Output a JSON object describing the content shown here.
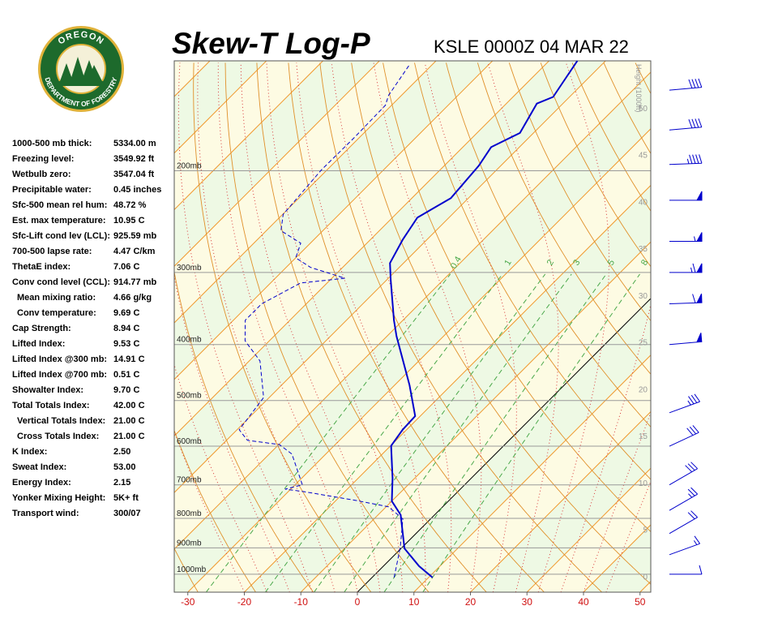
{
  "logo": {
    "top": "OREGON",
    "bottom": "DEPARTMENT OF FORESTRY"
  },
  "indices": [
    {
      "label": "1000-500 mb thick:",
      "value": "5334.00 m"
    },
    {
      "label": "Freezing level:",
      "value": "3549.92 ft"
    },
    {
      "label": "Wetbulb zero:",
      "value": "3547.04 ft"
    },
    {
      "label": "Precipitable water:",
      "value": "0.45 inches"
    },
    {
      "label": "Sfc-500 mean rel hum:",
      "value": "48.72 %"
    },
    {
      "label": "Est. max temperature:",
      "value": "10.95 C"
    },
    {
      "label": "Sfc-Lift cond lev (LCL):",
      "value": "925.59 mb"
    },
    {
      "label": "700-500 lapse rate:",
      "value": "4.47 C/km"
    },
    {
      "label": "ThetaE index:",
      "value": "7.06 C"
    },
    {
      "label": "Conv cond level (CCL):",
      "value": "914.77 mb",
      "sub": [
        {
          "label": "Mean mixing ratio:",
          "value": "4.66 g/kg"
        },
        {
          "label": "Conv temperature:",
          "value": "9.69 C"
        }
      ]
    },
    {
      "label": "Cap Strength:",
      "value": "8.94 C"
    },
    {
      "label": "Lifted Index:",
      "value": "9.53 C"
    },
    {
      "label": "Lifted Index @300 mb:",
      "value": "14.91 C"
    },
    {
      "label": "Lifted Index @700 mb:",
      "value": "0.51 C"
    },
    {
      "label": "Showalter Index:",
      "value": "9.70 C"
    },
    {
      "label": "Total Totals Index:",
      "value": "42.00 C",
      "sub": [
        {
          "label": "Vertical Totals Index:",
          "value": "21.00 C"
        },
        {
          "label": "Cross Totals Index:",
          "value": "21.00 C"
        }
      ]
    },
    {
      "label": "K Index:",
      "value": "2.50"
    },
    {
      "label": "Sweat Index:",
      "value": "53.00"
    },
    {
      "label": "Energy Index:",
      "value": "2.15"
    },
    {
      "label": "Yonker Mixing Height:",
      "value": "5K+ ft"
    },
    {
      "label": "Transport wind:",
      "value": "300/07"
    }
  ],
  "chart_data": {
    "type": "skew-t",
    "title": "Skew-T Log-P",
    "subtitle": "KSLE 0000Z 04 MAR 22",
    "xlim": [
      -32.4,
      51.9
    ],
    "xticks": [
      -30,
      -20,
      -10,
      0,
      10,
      20,
      30,
      40,
      50
    ],
    "ylim": [
      1074,
      129
    ],
    "ylog": true,
    "yticks": [
      {
        "value": 1000,
        "label": "1000mb"
      },
      {
        "value": 900,
        "label": "900mb"
      },
      {
        "value": 800,
        "label": "800mb"
      },
      {
        "value": 700,
        "label": "700mb"
      },
      {
        "value": 600,
        "label": "600mb"
      },
      {
        "value": 500,
        "label": "500mb"
      },
      {
        "value": 400,
        "label": "400mb"
      },
      {
        "value": 300,
        "label": "300mb"
      },
      {
        "value": 200,
        "label": "200mb"
      }
    ],
    "y2label": "Height (1000ft)",
    "y2lim": [
      -1.7,
      55.0
    ],
    "y2ticks": [
      0,
      5,
      10,
      15,
      20,
      25,
      30,
      35,
      40,
      45,
      50
    ],
    "mixing_ratios": [
      0.4,
      1,
      2,
      3,
      5,
      8
    ],
    "series": [
      {
        "color": "#0000cc",
        "style": "solid",
        "pressure": [
          1013,
          968,
          902,
          789,
          747,
          682,
          599,
          562,
          532,
          470,
          387,
          363,
          309,
          289,
          263,
          241,
          223,
          196,
          182,
          172,
          153,
          149,
          129
        ],
        "values": [
          10.7,
          6.3,
          0.6,
          -6.0,
          -10.0,
          -13.9,
          -19.9,
          -20.7,
          -20.9,
          -27.4,
          -38.3,
          -41.6,
          -49.3,
          -52.4,
          -54.3,
          -55.6,
          -53.1,
          -53.9,
          -55.0,
          -52.4,
          -54.6,
          -52.9,
          -55.0
        ]
      },
      {
        "color": "#0000cc",
        "style": "dashed",
        "pressure": [
          1013,
          899,
          802,
          764,
          745,
          719,
          712,
          700,
          619,
          596,
          586,
          562,
          494,
          427,
          394,
          363,
          340,
          313,
          307,
          294,
          283,
          267,
          254,
          238,
          199,
          175,
          154,
          148,
          131
        ],
        "values": [
          3.9,
          -0.3,
          -4.9,
          -9.6,
          -16.4,
          -27.3,
          -31.0,
          -28.7,
          -36.0,
          -39.9,
          -46.3,
          -49.6,
          -51.0,
          -58.1,
          -64.3,
          -67.9,
          -67.9,
          -64.7,
          -57.7,
          -65.7,
          -70.0,
          -71.7,
          -77.4,
          -79.9,
          -81.0,
          -80.9,
          -81.1,
          -82.3,
          -84.0
        ]
      }
    ],
    "wind_color": "#0000cc",
    "winds": [
      {
        "pressure": 1000,
        "direction": 270,
        "speed": 10
      },
      {
        "pressure": 925,
        "direction": 290,
        "speed": 15
      },
      {
        "pressure": 850,
        "direction": 300,
        "speed": 20
      },
      {
        "pressure": 775,
        "direction": 300,
        "speed": 25
      },
      {
        "pressure": 700,
        "direction": 300,
        "speed": 30
      },
      {
        "pressure": 600,
        "direction": 295,
        "speed": 30
      },
      {
        "pressure": 525,
        "direction": 290,
        "speed": 35
      },
      {
        "pressure": 400,
        "direction": 275,
        "speed": 50
      },
      {
        "pressure": 340,
        "direction": 272,
        "speed": 60
      },
      {
        "pressure": 300,
        "direction": 270,
        "speed": 65
      },
      {
        "pressure": 265,
        "direction": 270,
        "speed": 55
      },
      {
        "pressure": 225,
        "direction": 270,
        "speed": 50
      },
      {
        "pressure": 195,
        "direction": 272,
        "speed": 45
      },
      {
        "pressure": 170,
        "direction": 275,
        "speed": 40
      },
      {
        "pressure": 145,
        "direction": 275,
        "speed": 40
      }
    ]
  }
}
